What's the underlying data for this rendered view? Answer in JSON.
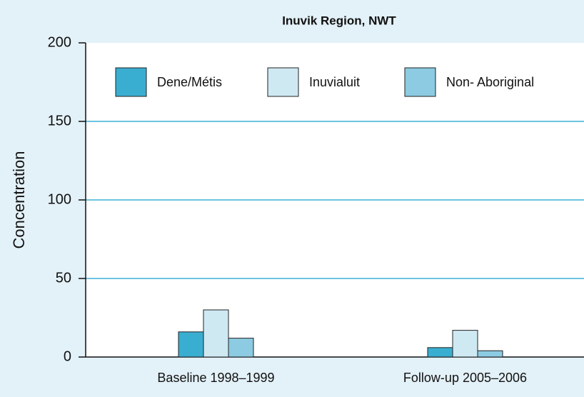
{
  "chart_data": {
    "type": "bar",
    "title": "Inuvik Region, NWT",
    "ylabel": "Concentration",
    "categories": [
      "Baseline 1998–1999",
      "Follow-up 2005–2006"
    ],
    "series": [
      {
        "name": "Dene/Métis",
        "color": "#3aaed0",
        "values": [
          16,
          6
        ]
      },
      {
        "name": "Inuvialuit",
        "color": "#cfe9f3",
        "values": [
          30,
          17
        ]
      },
      {
        "name": "Non- Aboriginal",
        "color": "#8ccbe2",
        "values": [
          12,
          4
        ]
      }
    ],
    "ylim": [
      0,
      200
    ],
    "yticks": [
      0,
      50,
      100,
      150,
      200
    ],
    "grid": true,
    "legend": "top"
  }
}
